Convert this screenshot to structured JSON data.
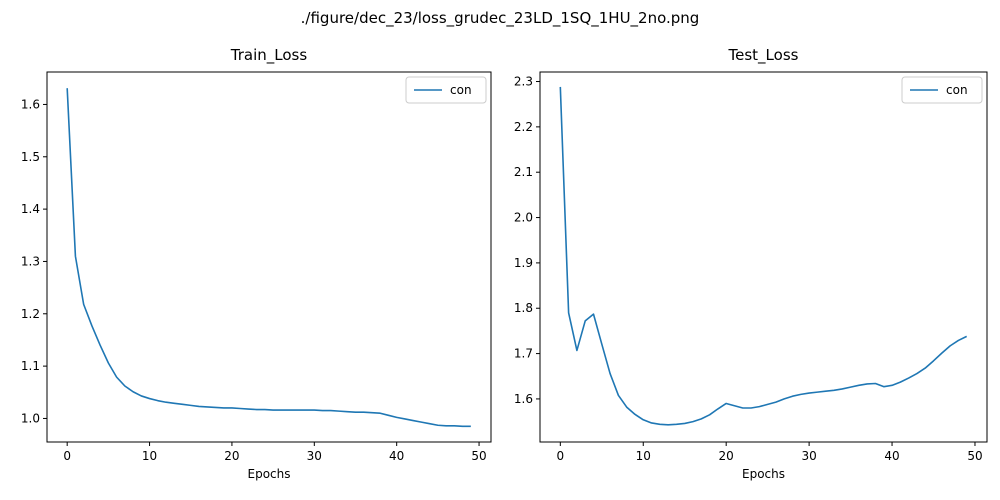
{
  "figure_title": "./figure/dec_23/loss_grudec_23LD_1SQ_1HU_2no.png",
  "chart_data": [
    {
      "type": "line",
      "title": "Train_Loss",
      "xlabel": "Epochs",
      "ylabel": "",
      "xlim": [
        -2.45,
        51.45
      ],
      "ylim": [
        0.955,
        1.662
      ],
      "xticks": [
        0,
        10,
        20,
        30,
        40,
        50
      ],
      "yticks": [
        1.0,
        1.1,
        1.2,
        1.3,
        1.4,
        1.5,
        1.6
      ],
      "ytick_labels": [
        "1.0",
        "1.1",
        "1.2",
        "1.3",
        "1.4",
        "1.5",
        "1.6"
      ],
      "legend": "top-right",
      "grid": false,
      "series": [
        {
          "name": "con",
          "color": "#1f77b4",
          "x": [
            0,
            1,
            2,
            3,
            4,
            5,
            6,
            7,
            8,
            9,
            10,
            11,
            12,
            13,
            14,
            15,
            16,
            17,
            18,
            19,
            20,
            21,
            22,
            23,
            24,
            25,
            26,
            27,
            28,
            29,
            30,
            31,
            32,
            33,
            34,
            35,
            36,
            37,
            38,
            39,
            40,
            41,
            42,
            43,
            44,
            45,
            46,
            47,
            48,
            49
          ],
          "y": [
            1.631,
            1.31,
            1.218,
            1.177,
            1.14,
            1.106,
            1.079,
            1.062,
            1.051,
            1.043,
            1.038,
            1.034,
            1.031,
            1.029,
            1.027,
            1.025,
            1.023,
            1.022,
            1.021,
            1.02,
            1.02,
            1.019,
            1.018,
            1.017,
            1.017,
            1.016,
            1.016,
            1.016,
            1.016,
            1.016,
            1.016,
            1.015,
            1.015,
            1.014,
            1.013,
            1.012,
            1.012,
            1.011,
            1.01,
            1.006,
            1.002,
            0.999,
            0.996,
            0.993,
            0.99,
            0.987,
            0.986,
            0.986,
            0.985,
            0.985
          ]
        }
      ]
    },
    {
      "type": "line",
      "title": "Test_Loss",
      "xlabel": "Epochs",
      "ylabel": "",
      "xlim": [
        -2.45,
        51.45
      ],
      "ylim": [
        1.505,
        2.321
      ],
      "xticks": [
        0,
        10,
        20,
        30,
        40,
        50
      ],
      "yticks": [
        1.6,
        1.7,
        1.8,
        1.9,
        2.0,
        2.1,
        2.2,
        2.3
      ],
      "ytick_labels": [
        "1.6",
        "1.7",
        "1.8",
        "1.9",
        "2.0",
        "2.1",
        "2.2",
        "2.3"
      ],
      "legend": "top-right",
      "grid": false,
      "series": [
        {
          "name": "con",
          "color": "#1f77b4",
          "x": [
            0,
            1,
            2,
            3,
            4,
            5,
            6,
            7,
            8,
            9,
            10,
            11,
            12,
            13,
            14,
            15,
            16,
            17,
            18,
            19,
            20,
            21,
            22,
            23,
            24,
            25,
            26,
            27,
            28,
            29,
            30,
            31,
            32,
            33,
            34,
            35,
            36,
            37,
            38,
            39,
            40,
            41,
            42,
            43,
            44,
            45,
            46,
            47,
            48,
            49
          ],
          "y": [
            2.288,
            1.79,
            1.707,
            1.772,
            1.787,
            1.721,
            1.656,
            1.608,
            1.582,
            1.566,
            1.554,
            1.547,
            1.544,
            1.543,
            1.544,
            1.546,
            1.55,
            1.556,
            1.565,
            1.578,
            1.59,
            1.585,
            1.58,
            1.58,
            1.583,
            1.588,
            1.593,
            1.6,
            1.606,
            1.61,
            1.613,
            1.615,
            1.617,
            1.619,
            1.622,
            1.626,
            1.63,
            1.633,
            1.634,
            1.627,
            1.63,
            1.637,
            1.646,
            1.656,
            1.668,
            1.684,
            1.701,
            1.717,
            1.729,
            1.738
          ]
        }
      ]
    }
  ]
}
